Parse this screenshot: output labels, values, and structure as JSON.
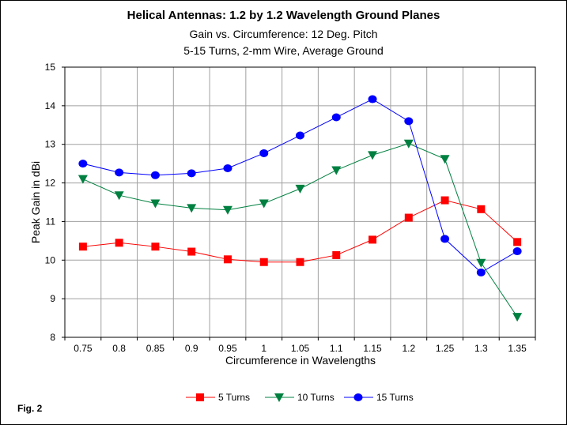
{
  "chart_data": {
    "type": "line",
    "title": "Helical Antennas: 1.2 by 1.2 Wavelength Ground Planes",
    "subtitle_1": "Gain vs. Circumference:  12 Deg. Pitch",
    "subtitle_2": "5-15 Turns, 2-mm Wire, Average Ground",
    "xlabel": "Circumference in Wavelengths",
    "ylabel": "Peak Gain in dBi",
    "categories": [
      "0.75",
      "0.8",
      "0.85",
      "0.9",
      "0.95",
      "1",
      "1.05",
      "1.1",
      "1.15",
      "1.2",
      "1.25",
      "1.3",
      "1.35"
    ],
    "ylim": [
      8,
      15
    ],
    "yticks": [
      "8",
      "9",
      "10",
      "11",
      "12",
      "13",
      "14",
      "15"
    ],
    "grid": true,
    "legend_position": "bottom",
    "series": [
      {
        "name": "5 Turns",
        "color": "#ff0000",
        "marker": "square",
        "values": [
          10.35,
          10.45,
          10.35,
          10.22,
          10.02,
          9.95,
          9.95,
          10.13,
          10.53,
          11.1,
          11.55,
          11.32,
          10.47
        ]
      },
      {
        "name": "10 Turns",
        "color": "#008040",
        "marker": "triangle-down",
        "values": [
          12.1,
          11.68,
          11.47,
          11.35,
          11.3,
          11.47,
          11.85,
          12.33,
          12.72,
          13.02,
          12.62,
          9.93,
          8.53
        ]
      },
      {
        "name": "15 Turns",
        "color": "#0000ff",
        "marker": "circle",
        "values": [
          12.5,
          12.27,
          12.2,
          12.25,
          12.38,
          12.77,
          13.23,
          13.7,
          14.17,
          13.6,
          10.55,
          9.68,
          10.23
        ]
      }
    ]
  },
  "figure_label": "Fig. 2"
}
